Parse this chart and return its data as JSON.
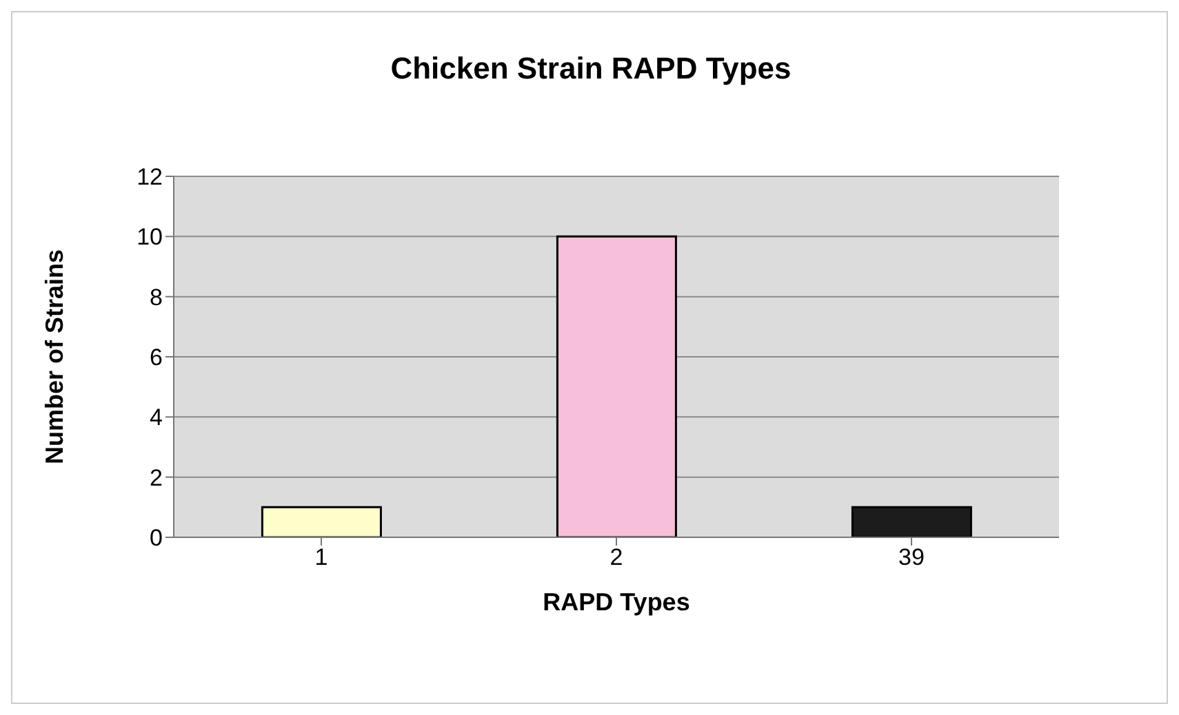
{
  "chart_data": {
    "type": "bar",
    "title": "Chicken Strain RAPD Types",
    "xlabel": "RAPD Types",
    "ylabel": "Number of Strains",
    "categories": [
      "1",
      "2",
      "39"
    ],
    "values": [
      1,
      10,
      1
    ],
    "colors": [
      "#ffffcc",
      "#f7bfd9",
      "#1c1c1c"
    ],
    "ylim": [
      0,
      12
    ],
    "yticks": [
      0,
      2,
      4,
      6,
      8,
      10,
      12
    ],
    "grid": "y"
  }
}
